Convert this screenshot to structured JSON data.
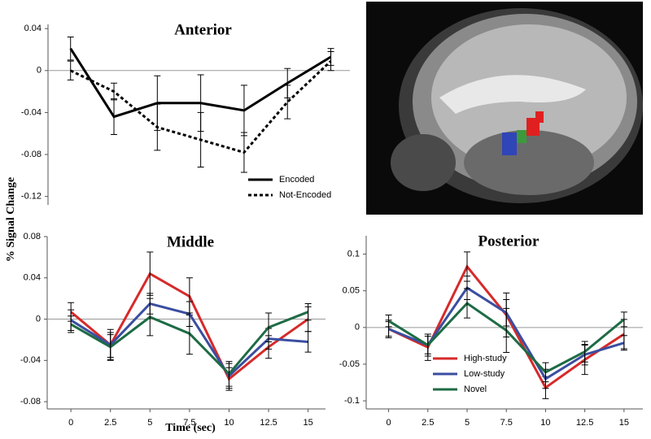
{
  "chart_data": [
    {
      "type": "line",
      "title": "Anterior",
      "x": [
        0,
        2.5,
        5,
        7.5,
        10,
        12.5,
        15
      ],
      "xlim": [
        -1.3,
        16.1
      ],
      "ylim": [
        -0.128,
        0.044
      ],
      "yticks": [
        0.04,
        0,
        -0.04,
        -0.08,
        -0.12
      ],
      "legend": "lower right",
      "series": [
        {
          "name": "Encoded",
          "color": "#000000",
          "dashed": false,
          "values": [
            0.021,
            -0.044,
            -0.031,
            -0.031,
            -0.038,
            -0.012,
            0.013
          ],
          "errors": [
            0.011,
            0.017,
            0.026,
            0.027,
            0.024,
            0.014,
            0.008
          ]
        },
        {
          "name": "Not-Encoded",
          "color": "#000000",
          "dashed": true,
          "values": [
            0,
            -0.02,
            -0.054,
            -0.066,
            -0.078,
            -0.03,
            0.009
          ],
          "errors": [
            0.009,
            0.008,
            0.022,
            0.026,
            0.019,
            0.016,
            0.009
          ]
        }
      ]
    },
    {
      "type": "line",
      "title": "Middle",
      "x_label": "Time (sec)",
      "y_label": "% Signal Change",
      "x": [
        0,
        2.5,
        5,
        7.5,
        10,
        12.5,
        15
      ],
      "xlim": [
        -1.5,
        16.1
      ],
      "xticks": [
        0,
        2.5,
        5,
        7.5,
        10,
        12.5,
        15
      ],
      "ylim": [
        -0.087,
        0.08
      ],
      "yticks": [
        0.08,
        0.04,
        0,
        -0.04,
        -0.08
      ],
      "series": [
        {
          "name": "High-study",
          "color": "#d62a2a",
          "dashed": false,
          "values": [
            0.007,
            -0.025,
            0.044,
            0.022,
            -0.058,
            -0.027,
            0
          ],
          "errors": [
            0.009,
            0.015,
            0.021,
            0.018,
            0.011,
            0.011,
            0.012
          ]
        },
        {
          "name": "Low-study",
          "color": "#3a4ea0",
          "dashed": false,
          "values": [
            -0.001,
            -0.025,
            0.015,
            0.005,
            -0.055,
            -0.019,
            -0.022
          ],
          "errors": [
            0.01,
            0.012,
            0.01,
            0.012,
            0.012,
            0.01,
            0.01
          ]
        },
        {
          "name": "Novel",
          "color": "#1e6b44",
          "dashed": false,
          "values": [
            -0.005,
            -0.027,
            0.002,
            -0.014,
            -0.053,
            -0.008,
            0.007
          ],
          "errors": [
            0.008,
            0.012,
            0.018,
            0.02,
            0.012,
            0.014,
            0.008
          ]
        }
      ]
    },
    {
      "type": "line",
      "title": "Posterior",
      "x": [
        0,
        2.5,
        5,
        7.5,
        10,
        12.5,
        15
      ],
      "xlim": [
        -1.43,
        16.2
      ],
      "xticks": [
        0,
        2.5,
        5,
        7.5,
        10,
        12.5,
        15
      ],
      "ylim": [
        -0.111,
        0.125
      ],
      "yticks": [
        0.1,
        0.05,
        0,
        -0.05,
        -0.1
      ],
      "legend": "lower left",
      "series": [
        {
          "name": "High-study",
          "color": "#d62a2a",
          "dashed": false,
          "values": [
            -0.002,
            -0.027,
            0.083,
            0.017,
            -0.082,
            -0.044,
            -0.009
          ],
          "errors": [
            0.012,
            0.018,
            0.02,
            0.03,
            0.015,
            0.02,
            0.02
          ]
        },
        {
          "name": "Low-study",
          "color": "#3a4ea0",
          "dashed": false,
          "values": [
            -0.002,
            -0.024,
            0.054,
            0.02,
            -0.07,
            -0.037,
            -0.021
          ],
          "errors": [
            0.01,
            0.015,
            0.016,
            0.018,
            0.013,
            0.014,
            0.01
          ]
        },
        {
          "name": "Novel",
          "color": "#1e6b44",
          "dashed": false,
          "values": [
            0.009,
            -0.024,
            0.033,
            -0.004,
            -0.061,
            -0.033,
            0.011
          ],
          "errors": [
            0.008,
            0.012,
            0.02,
            0.03,
            0.013,
            0.014,
            0.01
          ]
        }
      ]
    }
  ]
}
